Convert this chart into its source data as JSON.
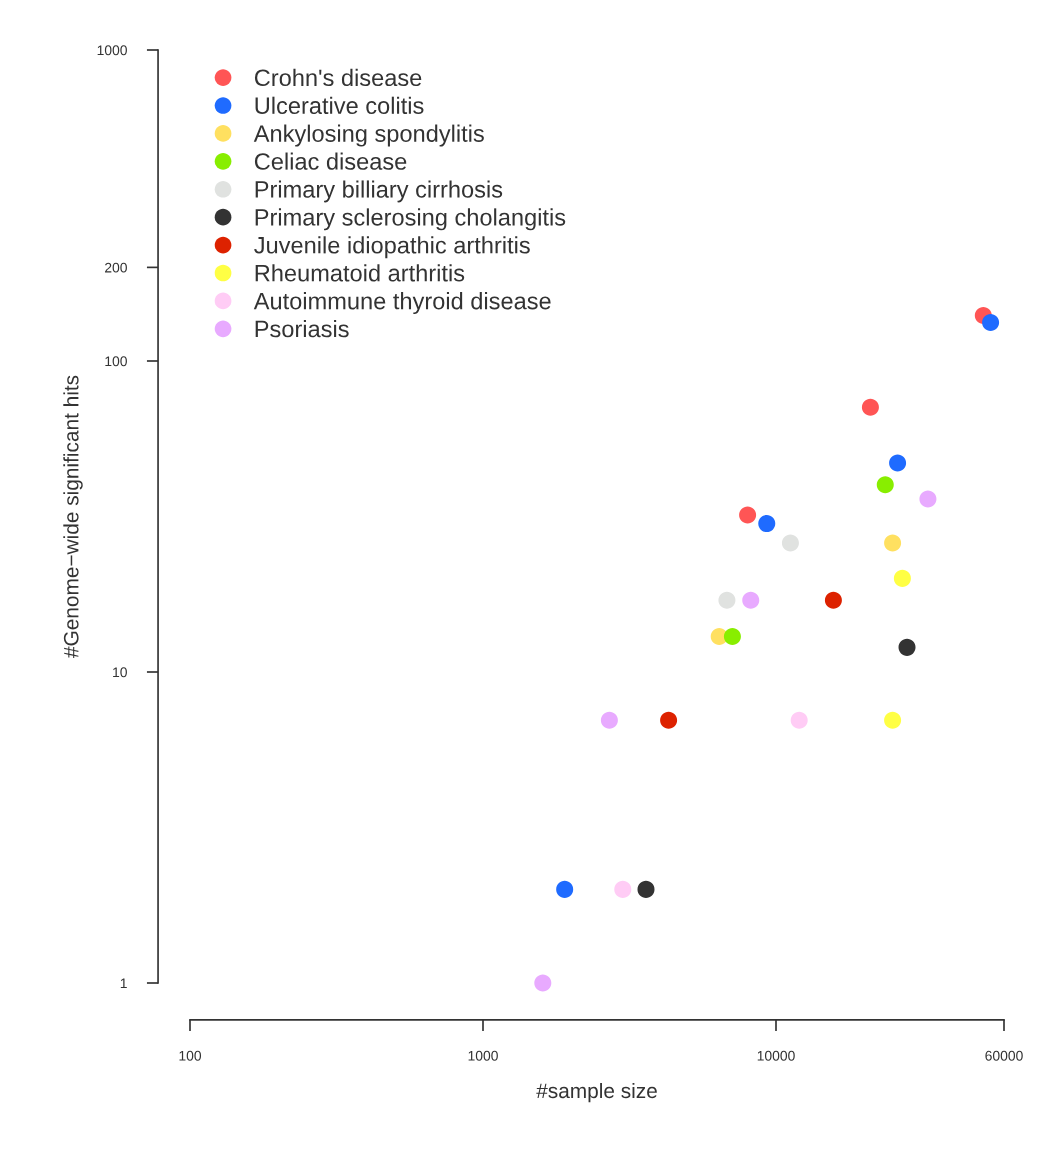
{
  "chart_data": {
    "type": "scatter",
    "xlabel": "#sample size",
    "ylabel": "#Genome−wide significant hits",
    "log": "xy",
    "xlim": [
      100,
      60000
    ],
    "ylim": [
      1,
      1000
    ],
    "xticks": [
      100,
      1000,
      10000,
      60000
    ],
    "yticks": [
      1,
      10,
      100,
      200,
      1000
    ],
    "grid": false,
    "legend": "top left",
    "marker": "circle",
    "series": [
      {
        "name": "Crohn's disease",
        "color": "#ff5555",
        "x": [
          51000,
          21000,
          8000
        ],
        "values": [
          140,
          71,
          32
        ]
      },
      {
        "name": "Ulcerative colitis",
        "color": "#1f6bff",
        "x": [
          54000,
          26000,
          9300,
          1900
        ],
        "values": [
          133,
          47,
          30,
          2
        ]
      },
      {
        "name": "Ankylosing spondylitis",
        "color": "#ffe060",
        "x": [
          25000,
          6400
        ],
        "values": [
          26,
          13
        ]
      },
      {
        "name": "Celiac disease",
        "color": "#88ee00",
        "x": [
          23600,
          7100
        ],
        "values": [
          40,
          13
        ]
      },
      {
        "name": "Primary billiary cirrhosis",
        "color": "#e0e2e0",
        "x": [
          11200,
          6800
        ],
        "values": [
          26,
          17
        ]
      },
      {
        "name": "Primary sclerosing cholangitis",
        "color": "#333333",
        "x": [
          28000,
          3600
        ],
        "values": [
          12,
          2
        ]
      },
      {
        "name": "Juvenile idiopathic arthritis",
        "color": "#dd2200",
        "x": [
          15700,
          4300
        ],
        "values": [
          17,
          7
        ]
      },
      {
        "name": "Rheumatoid arthritis",
        "color": "#ffff44",
        "x": [
          27000,
          25000
        ],
        "values": [
          20,
          7
        ]
      },
      {
        "name": "Autoimmune thyroid disease",
        "color": "#ffccf5",
        "x": [
          12000,
          3000
        ],
        "values": [
          7,
          2
        ]
      },
      {
        "name": "Psoriasis",
        "color": "#e8aaff",
        "x": [
          33000,
          8200,
          2700,
          1600
        ],
        "values": [
          36,
          17,
          7,
          1
        ]
      }
    ]
  }
}
